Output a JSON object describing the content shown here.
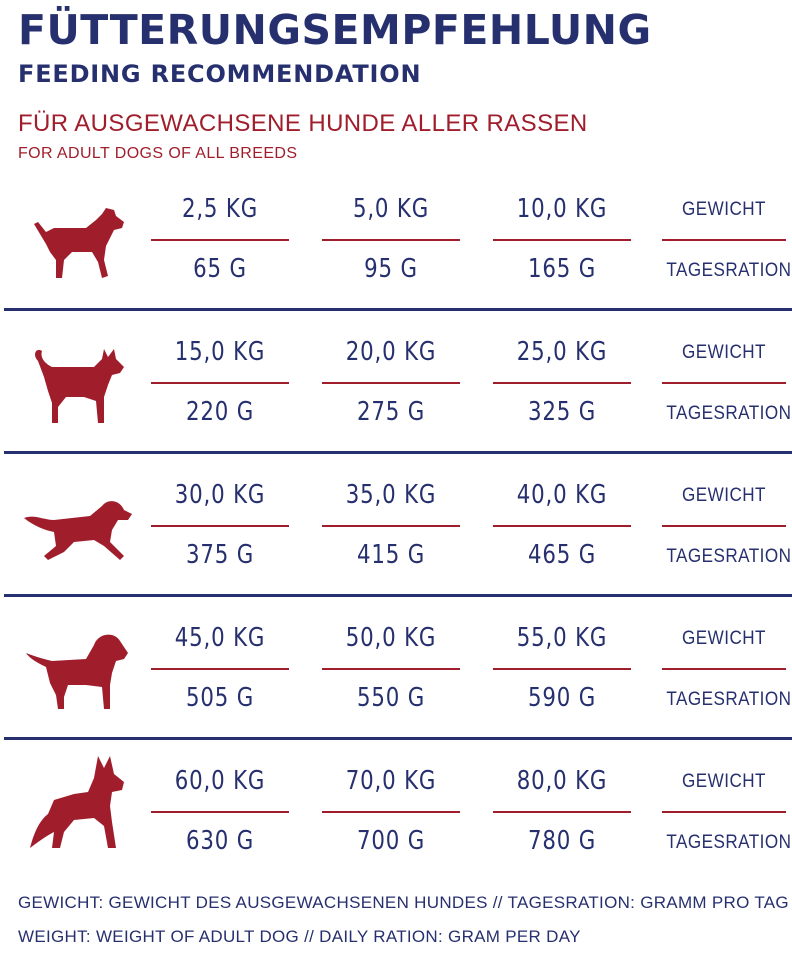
{
  "header": {
    "title_de": "FÜTTERUNGSEMPFEHLUNG",
    "title_en": "FEEDING RECOMMENDATION",
    "subtitle_de": "FÜR AUSGEWACHSENE HUNDE ALLER RASSEN",
    "subtitle_en": "FOR ADULT DOGS OF ALL BREEDS"
  },
  "labels": {
    "weight": "GEWICHT",
    "ration": "TAGESRATION"
  },
  "rows": [
    {
      "dog_icon": "small-terrier-icon",
      "cells": [
        {
          "kg": "2,5 KG",
          "g": "65 G"
        },
        {
          "kg": "5,0 KG",
          "g": "95 G"
        },
        {
          "kg": "10,0 KG",
          "g": "165 G"
        }
      ]
    },
    {
      "dog_icon": "spitz-dog-icon",
      "cells": [
        {
          "kg": "15,0 KG",
          "g": "220 G"
        },
        {
          "kg": "20,0 KG",
          "g": "275 G"
        },
        {
          "kg": "25,0 KG",
          "g": "325 G"
        }
      ]
    },
    {
      "dog_icon": "setter-dog-icon",
      "cells": [
        {
          "kg": "30,0 KG",
          "g": "375 G"
        },
        {
          "kg": "35,0 KG",
          "g": "415 G"
        },
        {
          "kg": "40,0 KG",
          "g": "465 G"
        }
      ]
    },
    {
      "dog_icon": "labrador-dog-icon",
      "cells": [
        {
          "kg": "45,0 KG",
          "g": "505 G"
        },
        {
          "kg": "50,0 KG",
          "g": "550 G"
        },
        {
          "kg": "55,0 KG",
          "g": "590 G"
        }
      ]
    },
    {
      "dog_icon": "shepherd-dog-icon",
      "cells": [
        {
          "kg": "60,0 KG",
          "g": "630 G"
        },
        {
          "kg": "70,0 KG",
          "g": "700 G"
        },
        {
          "kg": "80,0 KG",
          "g": "780 G"
        }
      ]
    }
  ],
  "footer": {
    "legend_de": "GEWICHT: GEWICHT DES AUSGEWACHSENEN HUNDES // TAGESRATION: GRAMM PRO TAG",
    "legend_en": "WEIGHT: WEIGHT OF ADULT DOG // DAILY RATION: GRAM PER DAY"
  },
  "colors": {
    "navy": "#27306f",
    "red": "#a01e2c"
  }
}
